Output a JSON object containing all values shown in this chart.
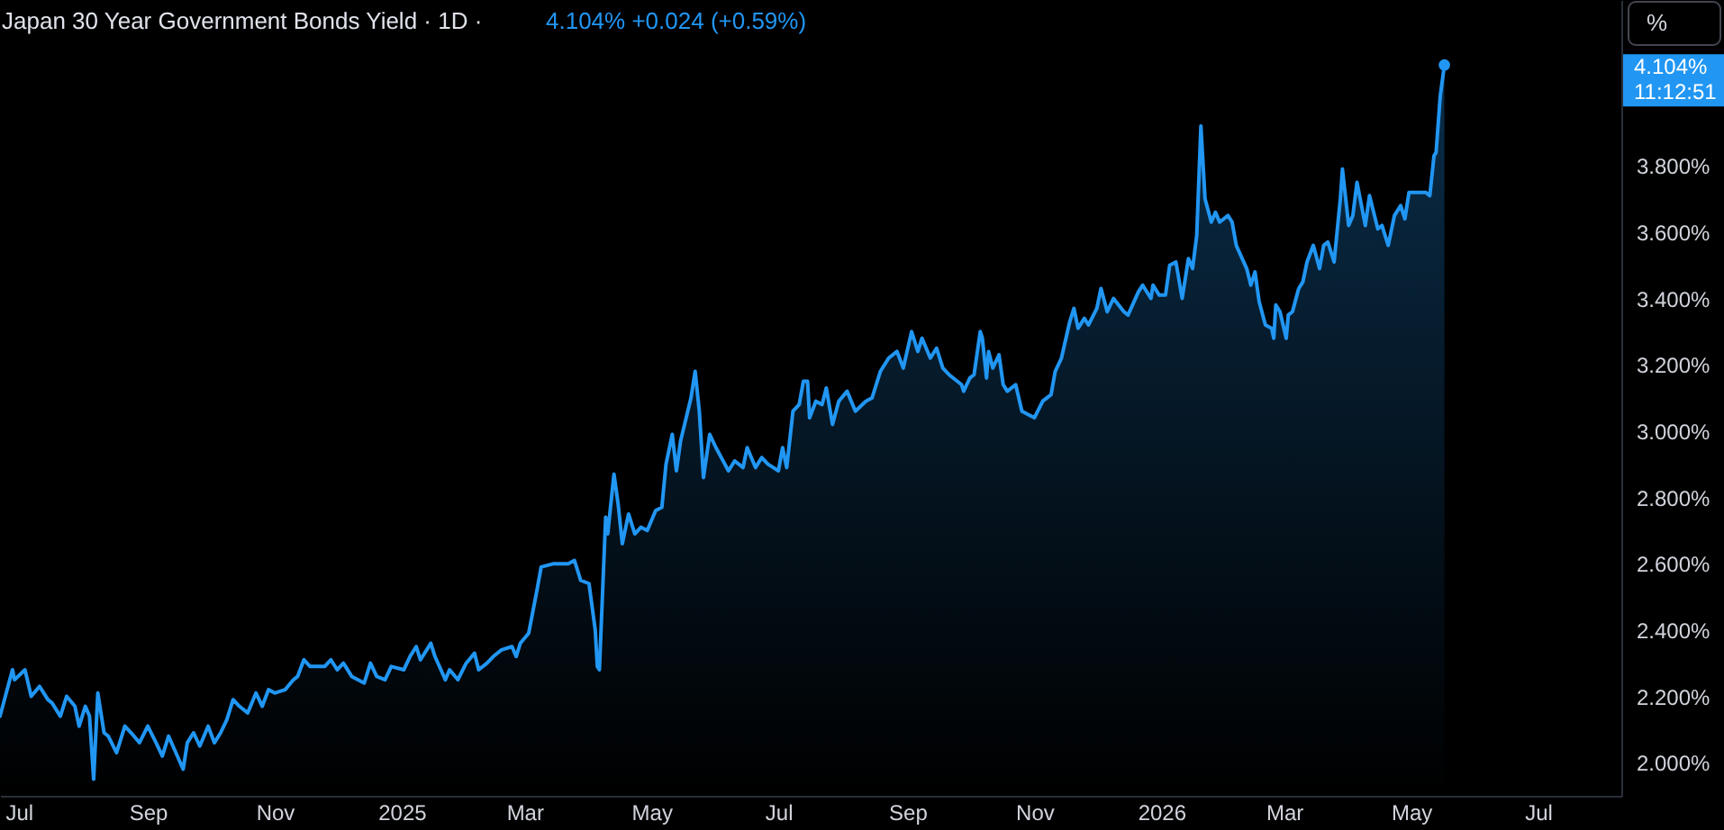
{
  "chart_data": {
    "type": "area",
    "title": "Japan 30 Year Government Bonds Yield · 1D ·",
    "subtitle": "4.104% +0.024 (+0.59%)",
    "x": [
      "2024-06-22",
      "2024-06-28",
      "2024-06-29",
      "2024-07-04",
      "2024-07-07",
      "2024-07-11",
      "2024-07-15",
      "2024-07-17",
      "2024-07-21",
      "2024-07-24",
      "2024-07-28",
      "2024-07-30",
      "2024-08-02",
      "2024-08-04",
      "2024-08-06",
      "2024-08-08",
      "2024-08-11",
      "2024-08-13",
      "2024-08-17",
      "2024-08-21",
      "2024-08-24",
      "2024-08-28",
      "2024-09-01",
      "2024-09-05",
      "2024-09-08",
      "2024-09-11",
      "2024-09-18",
      "2024-09-20",
      "2024-09-23",
      "2024-09-26",
      "2024-09-30",
      "2024-10-03",
      "2024-10-06",
      "2024-10-09",
      "2024-10-12",
      "2024-10-15",
      "2024-10-19",
      "2024-10-23",
      "2024-10-26",
      "2024-10-29",
      "2024-11-01",
      "2024-11-06",
      "2024-11-10",
      "2024-11-12",
      "2024-11-15",
      "2024-11-18",
      "2024-11-25",
      "2024-11-28",
      "2024-12-01",
      "2024-12-04",
      "2024-12-08",
      "2024-12-14",
      "2024-12-17",
      "2024-12-20",
      "2024-12-24",
      "2024-12-27",
      "2025-01-02",
      "2025-01-05",
      "2025-01-08",
      "2025-01-10",
      "2025-01-15",
      "2025-01-17",
      "2025-01-22",
      "2025-01-24",
      "2025-01-28",
      "2025-02-01",
      "2025-02-05",
      "2025-02-07",
      "2025-02-11",
      "2025-02-14",
      "2025-02-18",
      "2025-02-23",
      "2025-02-25",
      "2025-02-27",
      "2025-03-03",
      "2025-03-07",
      "2025-03-09",
      "2025-03-15",
      "2025-03-22",
      "2025-03-25",
      "2025-03-28",
      "2025-04-01",
      "2025-04-04",
      "2025-04-05",
      "2025-04-06",
      "2025-04-09",
      "2025-04-10",
      "2025-04-13",
      "2025-04-15",
      "2025-04-17",
      "2025-04-20",
      "2025-04-23",
      "2025-04-26",
      "2025-04-29",
      "2025-05-03",
      "2025-05-06",
      "2025-05-08",
      "2025-05-11",
      "2025-05-13",
      "2025-05-15",
      "2025-05-20",
      "2025-05-22",
      "2025-05-24",
      "2025-05-26",
      "2025-05-29",
      "2025-06-01",
      "2025-06-07",
      "2025-06-10",
      "2025-06-14",
      "2025-06-16",
      "2025-06-20",
      "2025-06-23",
      "2025-06-26",
      "2025-07-01",
      "2025-07-03",
      "2025-07-05",
      "2025-07-08",
      "2025-07-11",
      "2025-07-13",
      "2025-07-15",
      "2025-07-16",
      "2025-07-19",
      "2025-07-22",
      "2025-07-24",
      "2025-07-27",
      "2025-07-30",
      "2025-08-03",
      "2025-08-07",
      "2025-08-12",
      "2025-08-15",
      "2025-08-19",
      "2025-08-23",
      "2025-08-27",
      "2025-08-30",
      "2025-09-03",
      "2025-09-06",
      "2025-09-08",
      "2025-09-12",
      "2025-09-15",
      "2025-09-18",
      "2025-09-21",
      "2025-09-27",
      "2025-09-28",
      "2025-10-01",
      "2025-10-03",
      "2025-10-06",
      "2025-10-07",
      "2025-10-09",
      "2025-10-10",
      "2025-10-12",
      "2025-10-15",
      "2025-10-17",
      "2025-10-19",
      "2025-10-23",
      "2025-10-26",
      "2025-10-29",
      "2025-11-01",
      "2025-11-05",
      "2025-11-09",
      "2025-11-11",
      "2025-11-14",
      "2025-11-18",
      "2025-11-20",
      "2025-11-22",
      "2025-11-25",
      "2025-11-27",
      "2025-12-01",
      "2025-12-03",
      "2025-12-06",
      "2025-12-09",
      "2025-12-14",
      "2025-12-16",
      "2025-12-21",
      "2025-12-23",
      "2025-12-27",
      "2025-12-28",
      "2025-12-31",
      "2026-01-03",
      "2026-01-05",
      "2026-01-08",
      "2026-01-11",
      "2026-01-14",
      "2026-01-16",
      "2026-01-18",
      "2026-01-20",
      "2026-01-22",
      "2026-01-25",
      "2026-01-27",
      "2026-01-29",
      "2026-02-02",
      "2026-02-04",
      "2026-02-06",
      "2026-02-11",
      "2026-02-13",
      "2026-02-15",
      "2026-02-17",
      "2026-02-20",
      "2026-02-23",
      "2026-02-24",
      "2026-02-25",
      "2026-02-27",
      "2026-03-02",
      "2026-03-03",
      "2026-03-05",
      "2026-03-08",
      "2026-03-10",
      "2026-03-12",
      "2026-03-15",
      "2026-03-18",
      "2026-03-20",
      "2026-03-22",
      "2026-03-25",
      "2026-03-28",
      "2026-03-29",
      "2026-04-01",
      "2026-04-03",
      "2026-04-05",
      "2026-04-09",
      "2026-04-11",
      "2026-04-15",
      "2026-04-17",
      "2026-04-20",
      "2026-04-23",
      "2026-04-26",
      "2026-04-28",
      "2026-04-30",
      "2026-05-08",
      "2026-05-10",
      "2026-05-12",
      "2026-05-13",
      "2026-05-15",
      "2026-05-17"
    ],
    "series": [
      {
        "color": "#2196f3",
        "values": [
          2.14,
          2.28,
          2.25,
          2.28,
          2.2,
          2.23,
          2.19,
          2.18,
          2.14,
          2.2,
          2.17,
          2.11,
          2.17,
          2.14,
          1.95,
          2.21,
          2.09,
          2.08,
          2.03,
          2.11,
          2.09,
          2.06,
          2.11,
          2.06,
          2.02,
          2.08,
          1.98,
          2.06,
          2.09,
          2.05,
          2.11,
          2.06,
          2.09,
          2.13,
          2.19,
          2.17,
          2.15,
          2.21,
          2.17,
          2.22,
          2.21,
          2.22,
          2.25,
          2.26,
          2.31,
          2.29,
          2.29,
          2.31,
          2.28,
          2.3,
          2.26,
          2.24,
          2.3,
          2.26,
          2.25,
          2.29,
          2.28,
          2.32,
          2.35,
          2.31,
          2.36,
          2.32,
          2.25,
          2.28,
          2.25,
          2.3,
          2.33,
          2.28,
          2.3,
          2.32,
          2.34,
          2.35,
          2.32,
          2.36,
          2.39,
          2.52,
          2.59,
          2.6,
          2.6,
          2.61,
          2.55,
          2.54,
          2.4,
          2.29,
          2.28,
          2.74,
          2.69,
          2.87,
          2.78,
          2.66,
          2.75,
          2.69,
          2.71,
          2.7,
          2.76,
          2.77,
          2.9,
          2.99,
          2.88,
          2.97,
          3.1,
          3.18,
          3.06,
          2.86,
          2.99,
          2.95,
          2.88,
          2.91,
          2.89,
          2.95,
          2.89,
          2.92,
          2.9,
          2.88,
          2.95,
          2.89,
          3.06,
          3.08,
          3.15,
          3.15,
          3.04,
          3.09,
          3.08,
          3.13,
          3.02,
          3.09,
          3.12,
          3.06,
          3.09,
          3.1,
          3.18,
          3.22,
          3.24,
          3.19,
          3.3,
          3.24,
          3.28,
          3.22,
          3.25,
          3.19,
          3.17,
          3.14,
          3.12,
          3.16,
          3.17,
          3.3,
          3.28,
          3.16,
          3.24,
          3.19,
          3.23,
          3.14,
          3.12,
          3.14,
          3.06,
          3.05,
          3.04,
          3.09,
          3.11,
          3.18,
          3.22,
          3.33,
          3.37,
          3.31,
          3.34,
          3.32,
          3.37,
          3.43,
          3.36,
          3.4,
          3.36,
          3.35,
          3.42,
          3.44,
          3.4,
          3.44,
          3.41,
          3.41,
          3.5,
          3.51,
          3.4,
          3.52,
          3.49,
          3.59,
          3.92,
          3.7,
          3.63,
          3.66,
          3.63,
          3.65,
          3.63,
          3.56,
          3.49,
          3.44,
          3.48,
          3.39,
          3.32,
          3.31,
          3.28,
          3.38,
          3.36,
          3.28,
          3.35,
          3.36,
          3.43,
          3.45,
          3.51,
          3.56,
          3.49,
          3.56,
          3.57,
          3.51,
          3.7,
          3.79,
          3.62,
          3.65,
          3.75,
          3.62,
          3.71,
          3.61,
          3.62,
          3.56,
          3.65,
          3.68,
          3.64,
          3.72,
          3.72,
          3.71,
          3.83,
          3.84,
          4.01,
          4.104
        ]
      }
    ],
    "xlim": [
      "2024-06-22",
      "2026-08-10"
    ],
    "xticks": [
      {
        "value": "2024-07-01",
        "label": "Jul"
      },
      {
        "value": "2024-09-01",
        "label": "Sep"
      },
      {
        "value": "2024-11-01",
        "label": "Nov"
      },
      {
        "value": "2025-01-01",
        "label": "2025"
      },
      {
        "value": "2025-03-01",
        "label": "Mar"
      },
      {
        "value": "2025-05-01",
        "label": "May"
      },
      {
        "value": "2025-07-01",
        "label": "Jul"
      },
      {
        "value": "2025-09-01",
        "label": "Sep"
      },
      {
        "value": "2025-11-01",
        "label": "Nov"
      },
      {
        "value": "2026-01-01",
        "label": "2026"
      },
      {
        "value": "2026-03-01",
        "label": "Mar"
      },
      {
        "value": "2026-05-01",
        "label": "May"
      },
      {
        "value": "2026-07-01",
        "label": "Jul"
      }
    ],
    "ylim": [
      1.9,
      4.3
    ],
    "yticks": [
      {
        "value": 2.0,
        "label": "2.000%"
      },
      {
        "value": 2.2,
        "label": "2.200%"
      },
      {
        "value": 2.4,
        "label": "2.400%"
      },
      {
        "value": 2.6,
        "label": "2.600%"
      },
      {
        "value": 2.8,
        "label": "2.800%"
      },
      {
        "value": 3.0,
        "label": "3.000%"
      },
      {
        "value": 3.2,
        "label": "3.200%"
      },
      {
        "value": 3.4,
        "label": "3.400%"
      },
      {
        "value": 3.6,
        "label": "3.600%"
      },
      {
        "value": 3.8,
        "label": "3.800%"
      }
    ],
    "annotations": [
      "4.104%",
      "11:12:51",
      "%"
    ]
  }
}
